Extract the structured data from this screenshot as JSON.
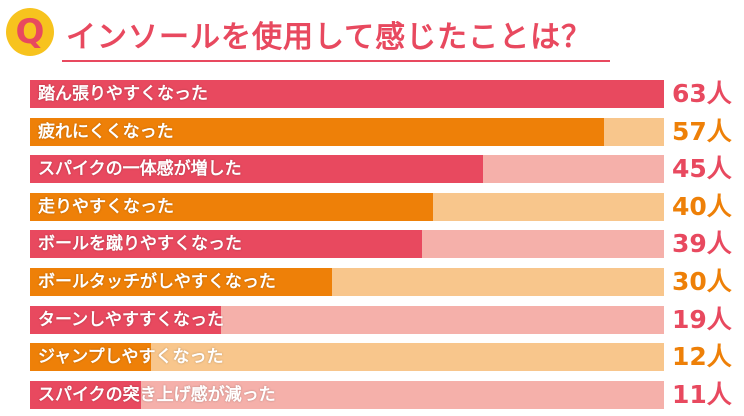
{
  "header": {
    "badge": "Q",
    "title": "インソールを使用して感じたことは？"
  },
  "colors": {
    "title": "#e8495f",
    "badge_bg": "#f7c31e",
    "pink_bar": "#e8495f",
    "pink_track": "#f5b0aa",
    "orange_bar": "#ee8008",
    "orange_track": "#f8c68c"
  },
  "chart_data": {
    "type": "bar",
    "orientation": "horizontal",
    "unit": "人",
    "max": 63,
    "categories": [
      "踏ん張りやすくなった",
      "疲れにくくなった",
      "スパイクの一体感が増した",
      "走りやすくなった",
      "ボールを蹴りやすくなった",
      "ボールタッチがしやすくなった",
      "ターンしやすすくなった",
      "ジャンプしやすくなった",
      "スパイクの突き上げ感が減った"
    ],
    "values": [
      63,
      57,
      45,
      40,
      39,
      30,
      19,
      12,
      11
    ],
    "value_labels": [
      "63人",
      "57人",
      "45人",
      "40人",
      "39人",
      "30人",
      "19人",
      "12人",
      "11人"
    ],
    "bar_colors": [
      "pink",
      "orange",
      "pink",
      "orange",
      "pink",
      "orange",
      "pink",
      "orange",
      "pink"
    ]
  }
}
